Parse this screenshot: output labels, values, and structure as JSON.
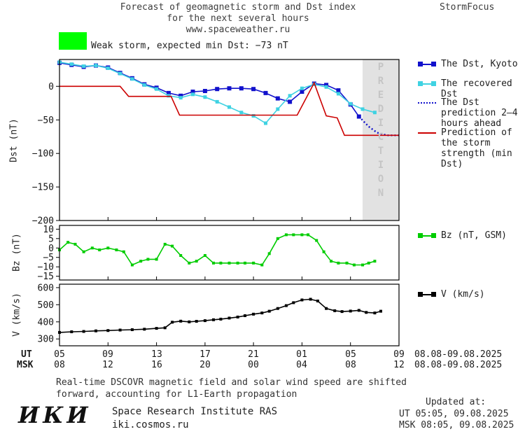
{
  "header": {
    "title_line1": "Forecast of geomagnetic storm and Dst index",
    "title_line2": "for the next several hours",
    "title_line3": "www.spaceweather.ru",
    "brand": "StormFocus"
  },
  "storm_banner": {
    "label": "Weak storm, expected min Dst: −73 nT",
    "swatch_color": "#00ff00"
  },
  "prediction_band": {
    "label": "PREDICTION",
    "fill_color": "#e2e2e2",
    "text_color": "#c5c5c5"
  },
  "chart_data": [
    {
      "type": "line",
      "id": "dst",
      "ylabel": "Dst (nT)",
      "xlabel_hours_ut": [
        "05",
        "09",
        "13",
        "17",
        "21",
        "01",
        "05",
        "09"
      ],
      "xlim": [
        5,
        33
      ],
      "ylim": [
        -200,
        40
      ],
      "yticks": [
        0,
        -50,
        -100,
        -150,
        -200
      ],
      "band": {
        "from": 30,
        "to": 33
      },
      "series": [
        {
          "id": "dst-kyoto",
          "name": "The Dst, Kyoto",
          "color": "#1111cc",
          "markers": true,
          "marker_size": 6,
          "points": [
            [
              5,
              35
            ],
            [
              6,
              32
            ],
            [
              7,
              29
            ],
            [
              8,
              31
            ],
            [
              9,
              28
            ],
            [
              10,
              20
            ],
            [
              11,
              12
            ],
            [
              12,
              3
            ],
            [
              13,
              -2
            ],
            [
              14,
              -10
            ],
            [
              15,
              -14
            ],
            [
              16,
              -8
            ],
            [
              17,
              -7
            ],
            [
              18,
              -4
            ],
            [
              19,
              -3
            ],
            [
              20,
              -3
            ],
            [
              21,
              -4
            ],
            [
              22,
              -10
            ],
            [
              23,
              -18
            ],
            [
              24,
              -23
            ],
            [
              25,
              -8
            ],
            [
              26,
              4
            ],
            [
              27,
              2
            ],
            [
              28,
              -6
            ],
            [
              29,
              -27
            ],
            [
              29.7,
              -45
            ]
          ]
        },
        {
          "id": "dst-recovered",
          "name": "The recovered Dst",
          "color": "#3fd2e2",
          "markers": true,
          "marker_size": 5,
          "points": [
            [
              5,
              36
            ],
            [
              6,
              33
            ],
            [
              7,
              30
            ],
            [
              8,
              31
            ],
            [
              9,
              27
            ],
            [
              10,
              19
            ],
            [
              11,
              11
            ],
            [
              12,
              2
            ],
            [
              13,
              -4
            ],
            [
              14,
              -14
            ],
            [
              15,
              -17
            ],
            [
              16,
              -12
            ],
            [
              17,
              -16
            ],
            [
              18,
              -23
            ],
            [
              19,
              -31
            ],
            [
              20,
              -39
            ],
            [
              21,
              -44
            ],
            [
              22,
              -55
            ],
            [
              23,
              -34
            ],
            [
              24,
              -14
            ],
            [
              25,
              -3
            ],
            [
              26,
              3
            ],
            [
              27,
              -1
            ],
            [
              28,
              -11
            ],
            [
              29,
              -26
            ],
            [
              30,
              -34
            ],
            [
              31,
              -39
            ]
          ]
        },
        {
          "id": "dst-prediction",
          "name": "The Dst prediction 2–4 hours ahead",
          "color": "#1111cc",
          "style": "dotted",
          "width": 2.4,
          "points": [
            [
              29.7,
              -45
            ],
            [
              30.5,
              -60
            ],
            [
              31.2,
              -69
            ],
            [
              32,
              -73
            ],
            [
              33,
              -73
            ]
          ]
        },
        {
          "id": "storm-prediction",
          "name": "Prediction of the storm strength (min Dst)",
          "color": "#cc0000",
          "points": [
            [
              5,
              0
            ],
            [
              10,
              0
            ],
            [
              10.7,
              -15
            ],
            [
              14.2,
              -15
            ],
            [
              14.9,
              -43
            ],
            [
              24.6,
              -43
            ],
            [
              26,
              5
            ],
            [
              27,
              -44
            ],
            [
              27.9,
              -47
            ],
            [
              28.5,
              -73
            ],
            [
              33,
              -73
            ]
          ]
        }
      ]
    },
    {
      "type": "line",
      "id": "bz",
      "ylabel": "Bz (nT)",
      "xlim": [
        5,
        33
      ],
      "ylim": [
        -17,
        12
      ],
      "yticks": [
        10,
        5,
        0,
        -5,
        -10,
        -15
      ],
      "series": [
        {
          "id": "bz-gsm",
          "name": "Bz (nT, GSM)",
          "color": "#00cc00",
          "markers": true,
          "marker_size": 4,
          "points": [
            [
              5,
              -1
            ],
            [
              5.7,
              3
            ],
            [
              6.3,
              2
            ],
            [
              7,
              -2
            ],
            [
              7.7,
              0
            ],
            [
              8.3,
              -1
            ],
            [
              9,
              0
            ],
            [
              9.7,
              -1
            ],
            [
              10.3,
              -2
            ],
            [
              11,
              -9
            ],
            [
              11.7,
              -7
            ],
            [
              12.3,
              -6
            ],
            [
              13,
              -6
            ],
            [
              13.7,
              2
            ],
            [
              14.3,
              1
            ],
            [
              15,
              -4
            ],
            [
              15.7,
              -8
            ],
            [
              16.3,
              -7
            ],
            [
              17,
              -4
            ],
            [
              17.7,
              -8
            ],
            [
              18.3,
              -8
            ],
            [
              19,
              -8
            ],
            [
              19.7,
              -8
            ],
            [
              20.3,
              -8
            ],
            [
              21,
              -8
            ],
            [
              21.7,
              -9
            ],
            [
              22.3,
              -3
            ],
            [
              23,
              5
            ],
            [
              23.7,
              7
            ],
            [
              24.3,
              7
            ],
            [
              25,
              7
            ],
            [
              25.5,
              7
            ],
            [
              26.2,
              4
            ],
            [
              26.8,
              -2
            ],
            [
              27.4,
              -7
            ],
            [
              28,
              -8
            ],
            [
              28.7,
              -8
            ],
            [
              29.3,
              -9
            ],
            [
              30,
              -9
            ],
            [
              30.5,
              -8
            ],
            [
              31,
              -7
            ]
          ]
        }
      ]
    },
    {
      "type": "line",
      "id": "v",
      "ylabel": "V (km/s)",
      "xlim": [
        5,
        33
      ],
      "ylim": [
        260,
        620
      ],
      "yticks": [
        600,
        500,
        400,
        300
      ],
      "series": [
        {
          "id": "v-speed",
          "name": "V (km/s)",
          "color": "#000000",
          "markers": true,
          "marker_size": 4,
          "points": [
            [
              5,
              338
            ],
            [
              6,
              342
            ],
            [
              7,
              344
            ],
            [
              8,
              347
            ],
            [
              9,
              349
            ],
            [
              10,
              352
            ],
            [
              11,
              354
            ],
            [
              12,
              357
            ],
            [
              13,
              362
            ],
            [
              13.7,
              365
            ],
            [
              14.3,
              398
            ],
            [
              15,
              404
            ],
            [
              15.7,
              400
            ],
            [
              16.3,
              403
            ],
            [
              17,
              407
            ],
            [
              17.7,
              412
            ],
            [
              18.3,
              416
            ],
            [
              19,
              422
            ],
            [
              19.7,
              428
            ],
            [
              20.3,
              436
            ],
            [
              21,
              445
            ],
            [
              21.7,
              452
            ],
            [
              22.3,
              462
            ],
            [
              23,
              478
            ],
            [
              23.7,
              495
            ],
            [
              24.3,
              512
            ],
            [
              25,
              528
            ],
            [
              25.7,
              532
            ],
            [
              26.3,
              522
            ],
            [
              27,
              478
            ],
            [
              27.7,
              465
            ],
            [
              28.3,
              460
            ],
            [
              29,
              463
            ],
            [
              29.7,
              467
            ],
            [
              30.3,
              455
            ],
            [
              31,
              452
            ],
            [
              31.5,
              462
            ]
          ]
        }
      ]
    }
  ],
  "xaxis": {
    "hours": [
      5,
      9,
      13,
      17,
      21,
      25,
      29,
      33
    ],
    "ut_label": "UT",
    "msk_label": "MSK",
    "ut_ticks": [
      "05",
      "09",
      "13",
      "17",
      "21",
      "01",
      "05",
      "09"
    ],
    "msk_ticks": [
      "08",
      "12",
      "16",
      "20",
      "00",
      "04",
      "08",
      "12"
    ],
    "ut_date": "08.08-09.08.2025",
    "msk_date": "08.08-09.08.2025"
  },
  "legends": {
    "kyoto": "The Dst, Kyoto",
    "recovered": "The recovered Dst",
    "prediction": "The Dst prediction 2–4 hours ahead",
    "storm": "Prediction of the storm strength (min Dst)",
    "bz": "Bz (nT, GSM)",
    "v": "V (km/s)"
  },
  "footnote": {
    "line1": "Real-time DSCOVR magnetic field and solar wind speed are shifted",
    "line2": "forward, accounting for L1-Earth propagation"
  },
  "updated": {
    "title": "Updated at:",
    "ut": "UT  05:05, 09.08.2025",
    "msk": "MSK 08:05, 09.08.2025"
  },
  "footer": {
    "logo": "ИКИ",
    "institute": "Space Research Institute RAS",
    "site": "iki.cosmos.ru"
  }
}
